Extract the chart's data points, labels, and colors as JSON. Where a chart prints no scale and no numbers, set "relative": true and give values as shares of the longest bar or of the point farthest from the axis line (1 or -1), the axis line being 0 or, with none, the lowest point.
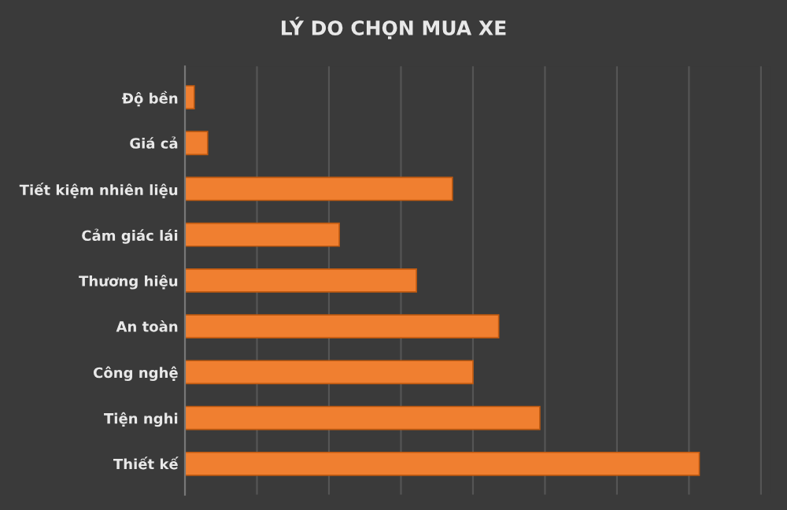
{
  "chart_data": {
    "type": "bar",
    "orientation": "horizontal",
    "relative": true,
    "title": "LÝ DO CHỌN MUA XE",
    "categories": [
      "Độ bền",
      "Giá cả",
      "Tiết kiệm nhiên liệu",
      "Cảm giác lái",
      "Thương hiệu",
      "An toàn",
      "Công nghệ",
      "Tiện nghi",
      "Thiết kế"
    ],
    "values": [
      0.018,
      0.044,
      0.52,
      0.3,
      0.45,
      0.61,
      0.56,
      0.69,
      1
    ],
    "color": "#f07f30",
    "grid": "x",
    "legend": false
  }
}
